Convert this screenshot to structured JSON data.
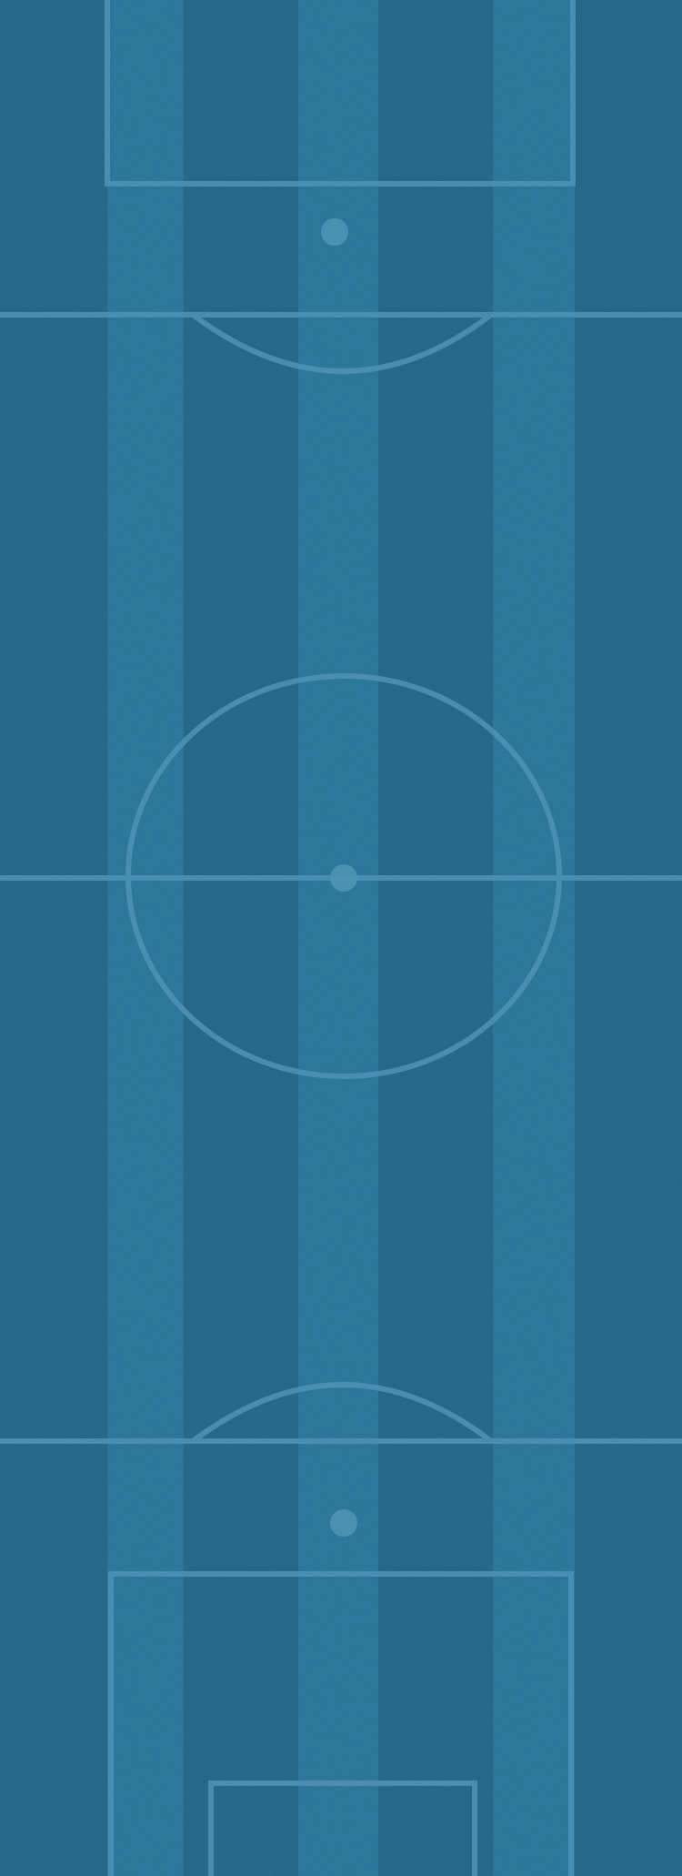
{
  "pitch": {
    "colors": {
      "dark_stripe": "#1d5e81",
      "light_stripe": "#246f95",
      "line": "#4f93b5"
    },
    "markings": [
      "top-penalty-box",
      "top-penalty-spot",
      "top-penalty-arc",
      "top-boundary-line",
      "center-circle",
      "halfway-line",
      "center-spot",
      "bottom-boundary-line",
      "bottom-penalty-arc",
      "bottom-penalty-spot",
      "bottom-penalty-box",
      "bottom-goal-box"
    ]
  }
}
